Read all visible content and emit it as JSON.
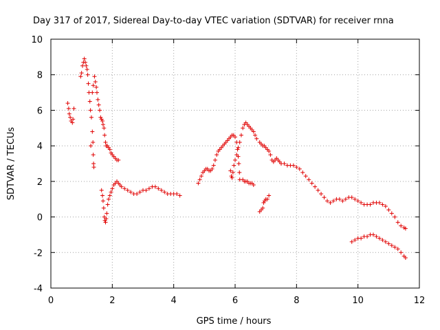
{
  "chart_data": {
    "type": "scatter",
    "title": "Day 317 of 2017, Sidereal Day-to-day VTEC variation (SDTVAR) for receiver rnna",
    "xlabel": "GPS time / hours",
    "ylabel": "SDTVAR / TECUs",
    "xlim": [
      0,
      12
    ],
    "ylim": [
      -4,
      10
    ],
    "xticks": [
      0,
      2,
      4,
      6,
      8,
      10,
      12
    ],
    "yticks": [
      -4,
      -2,
      0,
      2,
      4,
      6,
      8,
      10
    ],
    "grid": true,
    "marker": "plus",
    "color": "#e00000",
    "series": [
      {
        "name": "SDTVAR",
        "points": [
          [
            0.55,
            6.4
          ],
          [
            0.58,
            6.1
          ],
          [
            0.6,
            5.8
          ],
          [
            0.63,
            5.6
          ],
          [
            0.66,
            5.4
          ],
          [
            0.7,
            5.3
          ],
          [
            0.72,
            5.5
          ],
          [
            0.75,
            6.1
          ],
          [
            0.97,
            7.9
          ],
          [
            1.0,
            8.1
          ],
          [
            1.03,
            8.5
          ],
          [
            1.06,
            8.7
          ],
          [
            1.09,
            8.9
          ],
          [
            1.12,
            8.7
          ],
          [
            1.15,
            8.5
          ],
          [
            1.18,
            8.3
          ],
          [
            1.2,
            8.0
          ],
          [
            1.22,
            7.5
          ],
          [
            1.24,
            7.0
          ],
          [
            1.27,
            6.5
          ],
          [
            1.29,
            6.0
          ],
          [
            1.32,
            5.6
          ],
          [
            1.35,
            4.8
          ],
          [
            1.37,
            4.2
          ],
          [
            1.38,
            3.5
          ],
          [
            1.39,
            3.0
          ],
          [
            1.4,
            2.8
          ],
          [
            1.3,
            4.0
          ],
          [
            1.35,
            7.0
          ],
          [
            1.38,
            7.4
          ],
          [
            1.42,
            7.9
          ],
          [
            1.45,
            7.6
          ],
          [
            1.48,
            7.3
          ],
          [
            1.5,
            7.0
          ],
          [
            1.53,
            6.6
          ],
          [
            1.56,
            6.3
          ],
          [
            1.59,
            6.0
          ],
          [
            1.62,
            5.6
          ],
          [
            1.65,
            5.5
          ],
          [
            1.68,
            5.4
          ],
          [
            1.7,
            5.2
          ],
          [
            1.73,
            5.0
          ],
          [
            1.75,
            4.6
          ],
          [
            1.78,
            4.2
          ],
          [
            1.8,
            4.0
          ],
          [
            1.84,
            4.0
          ],
          [
            1.88,
            3.9
          ],
          [
            1.92,
            3.8
          ],
          [
            1.96,
            3.6
          ],
          [
            2.0,
            3.5
          ],
          [
            2.05,
            3.4
          ],
          [
            2.1,
            3.3
          ],
          [
            2.15,
            3.2
          ],
          [
            2.2,
            3.2
          ],
          [
            1.65,
            1.5
          ],
          [
            1.68,
            1.2
          ],
          [
            1.7,
            0.9
          ],
          [
            1.72,
            0.5
          ],
          [
            1.74,
            0.0
          ],
          [
            1.76,
            -0.2
          ],
          [
            1.78,
            -0.3
          ],
          [
            1.8,
            -0.1
          ],
          [
            1.82,
            0.2
          ],
          [
            1.85,
            0.7
          ],
          [
            1.88,
            1.0
          ],
          [
            1.92,
            1.2
          ],
          [
            1.96,
            1.4
          ],
          [
            2.0,
            1.6
          ],
          [
            2.05,
            1.8
          ],
          [
            2.1,
            1.9
          ],
          [
            2.15,
            2.0
          ],
          [
            2.2,
            1.9
          ],
          [
            2.25,
            1.8
          ],
          [
            2.3,
            1.7
          ],
          [
            2.4,
            1.6
          ],
          [
            2.5,
            1.5
          ],
          [
            2.6,
            1.4
          ],
          [
            2.7,
            1.3
          ],
          [
            2.8,
            1.3
          ],
          [
            2.9,
            1.4
          ],
          [
            3.0,
            1.5
          ],
          [
            3.1,
            1.5
          ],
          [
            3.2,
            1.6
          ],
          [
            3.3,
            1.7
          ],
          [
            3.4,
            1.7
          ],
          [
            3.5,
            1.6
          ],
          [
            3.6,
            1.5
          ],
          [
            3.7,
            1.4
          ],
          [
            3.8,
            1.3
          ],
          [
            3.9,
            1.3
          ],
          [
            4.0,
            1.3
          ],
          [
            4.1,
            1.3
          ],
          [
            4.2,
            1.2
          ],
          [
            4.8,
            1.9
          ],
          [
            4.85,
            2.1
          ],
          [
            4.9,
            2.3
          ],
          [
            4.95,
            2.5
          ],
          [
            5.0,
            2.6
          ],
          [
            5.05,
            2.7
          ],
          [
            5.1,
            2.7
          ],
          [
            5.15,
            2.6
          ],
          [
            5.2,
            2.6
          ],
          [
            5.25,
            2.7
          ],
          [
            5.3,
            2.9
          ],
          [
            5.35,
            3.2
          ],
          [
            5.4,
            3.5
          ],
          [
            5.45,
            3.7
          ],
          [
            5.5,
            3.8
          ],
          [
            5.55,
            3.9
          ],
          [
            5.6,
            4.0
          ],
          [
            5.65,
            4.1
          ],
          [
            5.7,
            4.2
          ],
          [
            5.75,
            4.3
          ],
          [
            5.8,
            4.4
          ],
          [
            5.85,
            4.5
          ],
          [
            5.9,
            4.6
          ],
          [
            5.95,
            4.6
          ],
          [
            6.0,
            4.5
          ],
          [
            6.05,
            4.2
          ],
          [
            6.08,
            3.8
          ],
          [
            6.1,
            3.4
          ],
          [
            6.12,
            3.0
          ],
          [
            6.14,
            2.5
          ],
          [
            6.15,
            2.1
          ],
          [
            5.85,
            2.6
          ],
          [
            5.88,
            2.3
          ],
          [
            5.9,
            2.2
          ],
          [
            5.93,
            2.5
          ],
          [
            5.96,
            2.9
          ],
          [
            6.0,
            3.2
          ],
          [
            6.05,
            3.5
          ],
          [
            6.1,
            3.9
          ],
          [
            6.15,
            4.2
          ],
          [
            6.2,
            4.6
          ],
          [
            6.25,
            5.0
          ],
          [
            6.3,
            5.2
          ],
          [
            6.35,
            5.3
          ],
          [
            6.4,
            5.2
          ],
          [
            6.45,
            5.1
          ],
          [
            6.5,
            5.0
          ],
          [
            6.55,
            4.9
          ],
          [
            6.6,
            4.8
          ],
          [
            6.65,
            4.6
          ],
          [
            6.7,
            4.4
          ],
          [
            6.25,
            2.1
          ],
          [
            6.3,
            2.0
          ],
          [
            6.35,
            2.0
          ],
          [
            6.4,
            2.0
          ],
          [
            6.45,
            1.9
          ],
          [
            6.5,
            1.9
          ],
          [
            6.55,
            1.9
          ],
          [
            6.6,
            1.8
          ],
          [
            6.8,
            0.3
          ],
          [
            6.85,
            0.4
          ],
          [
            6.9,
            0.5
          ],
          [
            6.93,
            0.8
          ],
          [
            6.96,
            0.9
          ],
          [
            7.0,
            1.0
          ],
          [
            7.05,
            1.0
          ],
          [
            7.1,
            1.2
          ],
          [
            6.8,
            4.2
          ],
          [
            6.85,
            4.1
          ],
          [
            6.9,
            4.0
          ],
          [
            6.95,
            4.0
          ],
          [
            7.0,
            3.9
          ],
          [
            7.05,
            3.8
          ],
          [
            7.1,
            3.7
          ],
          [
            7.15,
            3.5
          ],
          [
            7.2,
            3.2
          ],
          [
            7.25,
            3.1
          ],
          [
            7.3,
            3.2
          ],
          [
            7.35,
            3.3
          ],
          [
            7.4,
            3.2
          ],
          [
            7.45,
            3.1
          ],
          [
            7.5,
            3.0
          ],
          [
            7.6,
            3.0
          ],
          [
            7.7,
            2.9
          ],
          [
            7.8,
            2.9
          ],
          [
            7.9,
            2.9
          ],
          [
            8.0,
            2.8
          ],
          [
            8.1,
            2.7
          ],
          [
            8.2,
            2.5
          ],
          [
            8.3,
            2.3
          ],
          [
            8.4,
            2.1
          ],
          [
            8.5,
            1.9
          ],
          [
            8.6,
            1.7
          ],
          [
            8.7,
            1.5
          ],
          [
            8.8,
            1.3
          ],
          [
            8.9,
            1.1
          ],
          [
            9.0,
            0.9
          ],
          [
            9.1,
            0.8
          ],
          [
            9.2,
            0.9
          ],
          [
            9.3,
            1.0
          ],
          [
            9.4,
            1.0
          ],
          [
            9.5,
            0.9
          ],
          [
            9.6,
            1.0
          ],
          [
            9.7,
            1.1
          ],
          [
            9.8,
            1.1
          ],
          [
            9.9,
            1.0
          ],
          [
            10.0,
            0.9
          ],
          [
            10.1,
            0.8
          ],
          [
            10.2,
            0.7
          ],
          [
            10.3,
            0.7
          ],
          [
            10.4,
            0.7
          ],
          [
            10.5,
            0.8
          ],
          [
            10.6,
            0.8
          ],
          [
            10.7,
            0.8
          ],
          [
            10.8,
            0.7
          ],
          [
            10.9,
            0.6
          ],
          [
            11.0,
            0.4
          ],
          [
            11.1,
            0.2
          ],
          [
            11.2,
            0.0
          ],
          [
            11.3,
            -0.3
          ],
          [
            11.4,
            -0.5
          ],
          [
            11.5,
            -0.6
          ],
          [
            11.55,
            -0.65
          ],
          [
            9.8,
            -1.4
          ],
          [
            9.9,
            -1.3
          ],
          [
            10.0,
            -1.2
          ],
          [
            10.1,
            -1.2
          ],
          [
            10.2,
            -1.1
          ],
          [
            10.3,
            -1.1
          ],
          [
            10.4,
            -1.0
          ],
          [
            10.5,
            -1.0
          ],
          [
            10.6,
            -1.1
          ],
          [
            10.7,
            -1.2
          ],
          [
            10.8,
            -1.3
          ],
          [
            10.9,
            -1.4
          ],
          [
            11.0,
            -1.5
          ],
          [
            11.1,
            -1.6
          ],
          [
            11.2,
            -1.7
          ],
          [
            11.3,
            -1.8
          ],
          [
            11.4,
            -2.0
          ],
          [
            11.5,
            -2.2
          ],
          [
            11.55,
            -2.3
          ]
        ]
      }
    ]
  }
}
